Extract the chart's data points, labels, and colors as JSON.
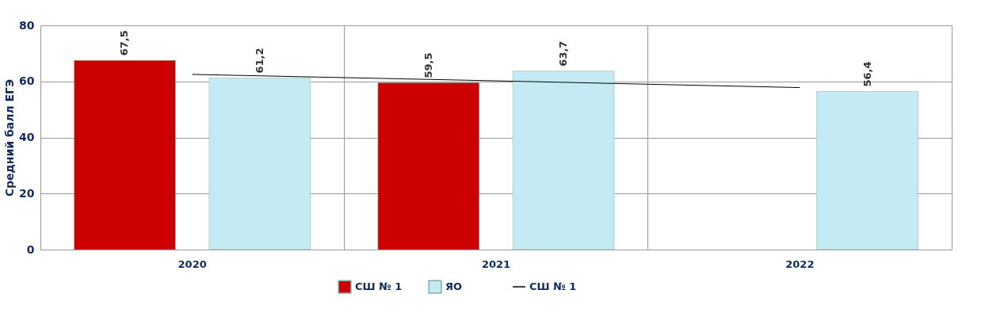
{
  "chart_data": {
    "type": "bar",
    "ylabel": "Средний балл ЕГЭ",
    "categories": [
      "2020",
      "2021",
      "2022"
    ],
    "series": [
      {
        "name": "СШ № 1",
        "color": "#cc0000",
        "values": [
          67.5,
          59.5,
          null
        ],
        "value_labels": [
          "67,5",
          "59,5",
          null
        ]
      },
      {
        "name": "ЯО",
        "color": "#c4eaf4",
        "values": [
          61.2,
          63.7,
          56.4
        ],
        "value_labels": [
          "61,2",
          "63,7",
          "56,4"
        ]
      },
      {
        "name": "СШ № 1",
        "type": "line",
        "color": "#000000",
        "values": [
          62.5,
          60.2,
          57.8
        ]
      }
    ],
    "ylim": [
      0,
      80
    ],
    "yticks": [
      0,
      20,
      40,
      60,
      80
    ],
    "grid": true,
    "legend": "bottom"
  }
}
